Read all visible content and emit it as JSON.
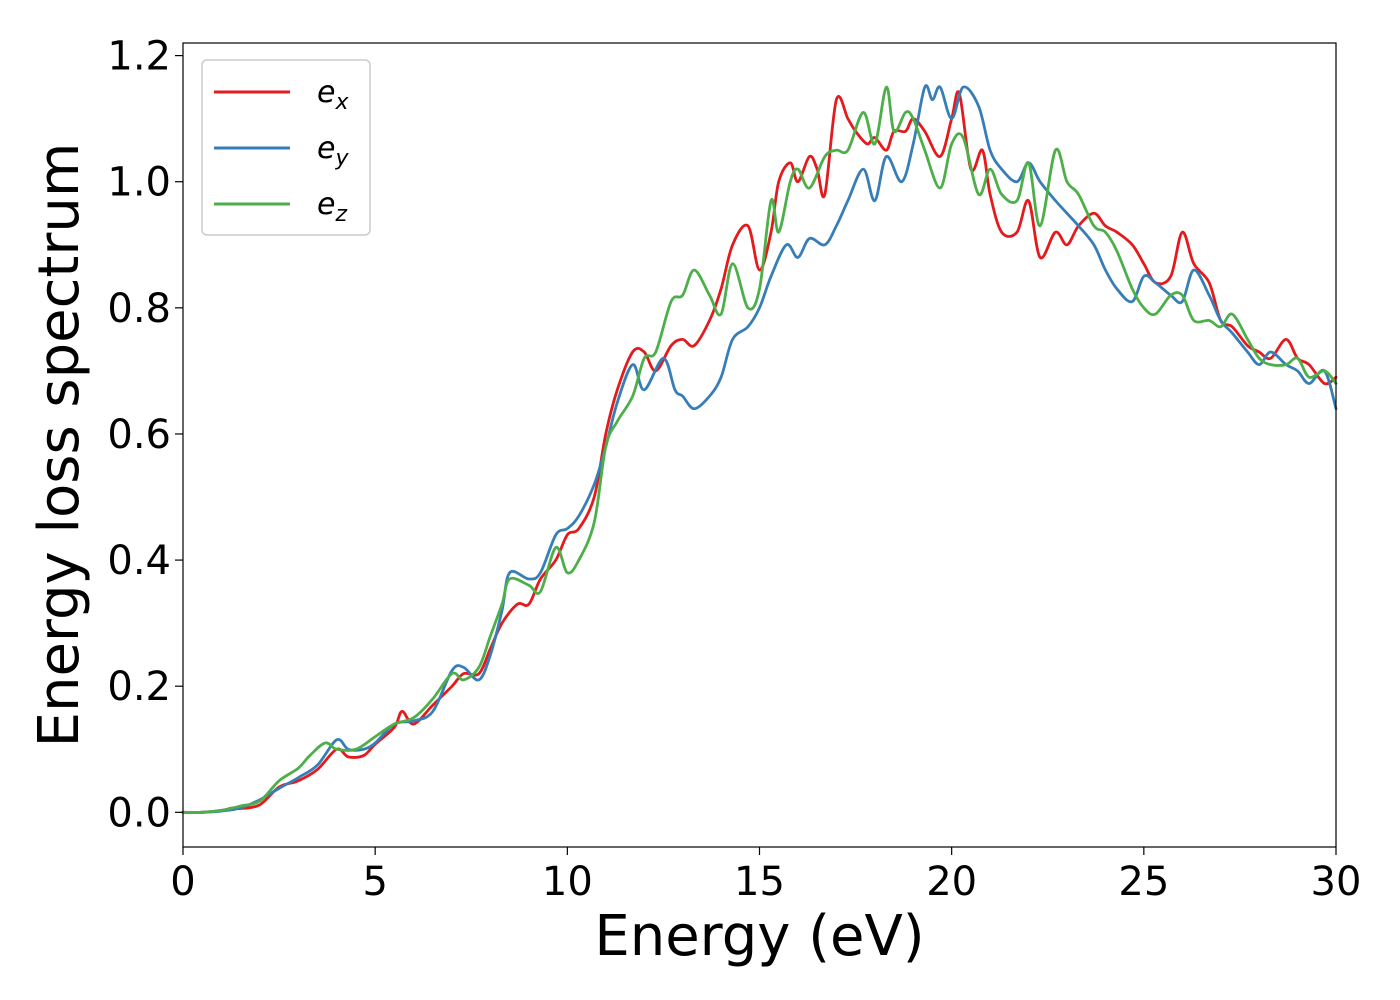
{
  "chart_data": {
    "type": "line",
    "title": "",
    "xlabel": "Energy (eV)",
    "ylabel": "Energy loss spectrum",
    "xlim": [
      0,
      30
    ],
    "ylim": [
      -0.055,
      1.22
    ],
    "xticks": [
      0,
      5,
      10,
      15,
      20,
      25,
      30
    ],
    "xtick_labels": [
      "0",
      "5",
      "10",
      "15",
      "20",
      "25",
      "30"
    ],
    "yticks": [
      0.0,
      0.2,
      0.4,
      0.6,
      0.8,
      1.0,
      1.2
    ],
    "ytick_labels": [
      "0.0",
      "0.2",
      "0.4",
      "0.6",
      "0.8",
      "1.0",
      "1.2"
    ],
    "grid": false,
    "legend_position": "top-left",
    "series": [
      {
        "name": "e",
        "subscript": "x",
        "color": "#e41a1c",
        "points": [
          [
            0,
            0
          ],
          [
            0.5,
            0.0
          ],
          [
            1,
            0.003
          ],
          [
            1.3,
            0.007
          ],
          [
            1.5,
            0.006
          ],
          [
            2,
            0.012
          ],
          [
            2.5,
            0.04
          ],
          [
            3,
            0.05
          ],
          [
            3.5,
            0.068
          ],
          [
            4,
            0.1
          ],
          [
            4.3,
            0.088
          ],
          [
            4.7,
            0.09
          ],
          [
            5,
            0.108
          ],
          [
            5.5,
            0.135
          ],
          [
            5.7,
            0.16
          ],
          [
            6,
            0.14
          ],
          [
            6.5,
            0.17
          ],
          [
            7,
            0.2
          ],
          [
            7.3,
            0.22
          ],
          [
            7.7,
            0.22
          ],
          [
            8,
            0.26
          ],
          [
            8.3,
            0.3
          ],
          [
            8.7,
            0.33
          ],
          [
            9,
            0.33
          ],
          [
            9.3,
            0.37
          ],
          [
            9.7,
            0.4
          ],
          [
            10,
            0.44
          ],
          [
            10.3,
            0.45
          ],
          [
            10.7,
            0.5
          ],
          [
            11,
            0.6
          ],
          [
            11.3,
            0.67
          ],
          [
            11.7,
            0.73
          ],
          [
            12,
            0.73
          ],
          [
            12.3,
            0.7
          ],
          [
            12.7,
            0.74
          ],
          [
            13,
            0.75
          ],
          [
            13.3,
            0.74
          ],
          [
            13.7,
            0.78
          ],
          [
            14,
            0.83
          ],
          [
            14.3,
            0.9
          ],
          [
            14.7,
            0.93
          ],
          [
            15,
            0.86
          ],
          [
            15.3,
            0.92
          ],
          [
            15.5,
            1.0
          ],
          [
            15.8,
            1.03
          ],
          [
            16,
            1.0
          ],
          [
            16.3,
            1.04
          ],
          [
            16.5,
            1.02
          ],
          [
            16.7,
            0.98
          ],
          [
            17,
            1.13
          ],
          [
            17.3,
            1.1
          ],
          [
            17.5,
            1.08
          ],
          [
            17.8,
            1.06
          ],
          [
            18,
            1.07
          ],
          [
            18.3,
            1.05
          ],
          [
            18.5,
            1.08
          ],
          [
            18.8,
            1.08
          ],
          [
            19,
            1.1
          ],
          [
            19.3,
            1.08
          ],
          [
            19.7,
            1.04
          ],
          [
            20,
            1.1
          ],
          [
            20.2,
            1.14
          ],
          [
            20.5,
            1.02
          ],
          [
            20.8,
            1.05
          ],
          [
            21,
            0.98
          ],
          [
            21.3,
            0.92
          ],
          [
            21.7,
            0.92
          ],
          [
            22,
            0.97
          ],
          [
            22.3,
            0.88
          ],
          [
            22.7,
            0.92
          ],
          [
            23,
            0.9
          ],
          [
            23.3,
            0.93
          ],
          [
            23.7,
            0.95
          ],
          [
            24,
            0.93
          ],
          [
            24.3,
            0.92
          ],
          [
            24.7,
            0.9
          ],
          [
            25,
            0.87
          ],
          [
            25.3,
            0.84
          ],
          [
            25.7,
            0.85
          ],
          [
            26,
            0.92
          ],
          [
            26.3,
            0.87
          ],
          [
            26.7,
            0.84
          ],
          [
            27,
            0.78
          ],
          [
            27.3,
            0.77
          ],
          [
            27.7,
            0.74
          ],
          [
            28,
            0.73
          ],
          [
            28.3,
            0.72
          ],
          [
            28.7,
            0.75
          ],
          [
            29,
            0.72
          ],
          [
            29.3,
            0.71
          ],
          [
            29.7,
            0.68
          ],
          [
            30,
            0.69
          ]
        ]
      },
      {
        "name": "e",
        "subscript": "y",
        "color": "#377eb8",
        "points": [
          [
            0,
            0
          ],
          [
            0.5,
            0.0
          ],
          [
            1,
            0.002
          ],
          [
            1.5,
            0.007
          ],
          [
            2,
            0.02
          ],
          [
            2.5,
            0.038
          ],
          [
            3,
            0.055
          ],
          [
            3.5,
            0.075
          ],
          [
            4,
            0.115
          ],
          [
            4.3,
            0.1
          ],
          [
            4.7,
            0.1
          ],
          [
            5,
            0.11
          ],
          [
            5.5,
            0.14
          ],
          [
            6,
            0.145
          ],
          [
            6.5,
            0.16
          ],
          [
            7,
            0.225
          ],
          [
            7.3,
            0.23
          ],
          [
            7.7,
            0.21
          ],
          [
            8,
            0.25
          ],
          [
            8.3,
            0.32
          ],
          [
            8.5,
            0.38
          ],
          [
            9,
            0.37
          ],
          [
            9.3,
            0.38
          ],
          [
            9.7,
            0.44
          ],
          [
            10,
            0.45
          ],
          [
            10.3,
            0.47
          ],
          [
            10.7,
            0.52
          ],
          [
            11,
            0.58
          ],
          [
            11.3,
            0.65
          ],
          [
            11.7,
            0.71
          ],
          [
            12,
            0.67
          ],
          [
            12.5,
            0.72
          ],
          [
            12.8,
            0.67
          ],
          [
            13,
            0.66
          ],
          [
            13.3,
            0.64
          ],
          [
            13.7,
            0.66
          ],
          [
            14,
            0.69
          ],
          [
            14.3,
            0.75
          ],
          [
            14.7,
            0.77
          ],
          [
            15,
            0.8
          ],
          [
            15.3,
            0.85
          ],
          [
            15.7,
            0.9
          ],
          [
            16,
            0.88
          ],
          [
            16.3,
            0.91
          ],
          [
            16.7,
            0.9
          ],
          [
            17,
            0.93
          ],
          [
            17.3,
            0.97
          ],
          [
            17.7,
            1.02
          ],
          [
            18,
            0.97
          ],
          [
            18.3,
            1.04
          ],
          [
            18.7,
            1.0
          ],
          [
            19,
            1.06
          ],
          [
            19.3,
            1.15
          ],
          [
            19.5,
            1.13
          ],
          [
            19.7,
            1.15
          ],
          [
            20,
            1.1
          ],
          [
            20.3,
            1.15
          ],
          [
            20.7,
            1.12
          ],
          [
            21,
            1.05
          ],
          [
            21.3,
            1.02
          ],
          [
            21.7,
            1.0
          ],
          [
            22,
            1.03
          ],
          [
            22.3,
            1.0
          ],
          [
            22.7,
            0.97
          ],
          [
            23,
            0.95
          ],
          [
            23.3,
            0.93
          ],
          [
            23.7,
            0.9
          ],
          [
            24,
            0.86
          ],
          [
            24.3,
            0.83
          ],
          [
            24.7,
            0.81
          ],
          [
            25,
            0.85
          ],
          [
            25.3,
            0.84
          ],
          [
            25.7,
            0.82
          ],
          [
            26,
            0.81
          ],
          [
            26.3,
            0.86
          ],
          [
            26.7,
            0.82
          ],
          [
            27,
            0.78
          ],
          [
            27.3,
            0.76
          ],
          [
            27.7,
            0.73
          ],
          [
            28,
            0.71
          ],
          [
            28.3,
            0.73
          ],
          [
            28.7,
            0.71
          ],
          [
            29,
            0.7
          ],
          [
            29.3,
            0.68
          ],
          [
            29.7,
            0.7
          ],
          [
            30,
            0.64
          ]
        ]
      },
      {
        "name": "e",
        "subscript": "z",
        "color": "#4daf4a",
        "points": [
          [
            0,
            0
          ],
          [
            0.5,
            0.0
          ],
          [
            1,
            0.003
          ],
          [
            1.5,
            0.01
          ],
          [
            2,
            0.018
          ],
          [
            2.5,
            0.05
          ],
          [
            3,
            0.07
          ],
          [
            3.3,
            0.09
          ],
          [
            3.7,
            0.11
          ],
          [
            4,
            0.1
          ],
          [
            4.5,
            0.1
          ],
          [
            5,
            0.12
          ],
          [
            5.5,
            0.14
          ],
          [
            6,
            0.15
          ],
          [
            6.5,
            0.18
          ],
          [
            7,
            0.22
          ],
          [
            7.3,
            0.21
          ],
          [
            7.7,
            0.23
          ],
          [
            8,
            0.28
          ],
          [
            8.3,
            0.33
          ],
          [
            8.5,
            0.37
          ],
          [
            9,
            0.36
          ],
          [
            9.3,
            0.35
          ],
          [
            9.7,
            0.42
          ],
          [
            10,
            0.38
          ],
          [
            10.3,
            0.4
          ],
          [
            10.7,
            0.46
          ],
          [
            11,
            0.58
          ],
          [
            11.3,
            0.62
          ],
          [
            11.7,
            0.66
          ],
          [
            12,
            0.72
          ],
          [
            12.3,
            0.73
          ],
          [
            12.7,
            0.81
          ],
          [
            13,
            0.82
          ],
          [
            13.3,
            0.86
          ],
          [
            13.7,
            0.82
          ],
          [
            14,
            0.79
          ],
          [
            14.3,
            0.87
          ],
          [
            14.7,
            0.8
          ],
          [
            15,
            0.83
          ],
          [
            15.3,
            0.97
          ],
          [
            15.5,
            0.92
          ],
          [
            15.8,
            1.0
          ],
          [
            16,
            1.02
          ],
          [
            16.3,
            0.99
          ],
          [
            16.7,
            1.04
          ],
          [
            17,
            1.05
          ],
          [
            17.3,
            1.05
          ],
          [
            17.7,
            1.11
          ],
          [
            18,
            1.06
          ],
          [
            18.3,
            1.15
          ],
          [
            18.5,
            1.08
          ],
          [
            18.8,
            1.11
          ],
          [
            19,
            1.1
          ],
          [
            19.3,
            1.05
          ],
          [
            19.7,
            0.99
          ],
          [
            20,
            1.06
          ],
          [
            20.3,
            1.07
          ],
          [
            20.7,
            0.98
          ],
          [
            21,
            1.02
          ],
          [
            21.3,
            0.98
          ],
          [
            21.7,
            0.97
          ],
          [
            22,
            1.03
          ],
          [
            22.3,
            0.93
          ],
          [
            22.7,
            1.05
          ],
          [
            23,
            1.0
          ],
          [
            23.3,
            0.98
          ],
          [
            23.7,
            0.93
          ],
          [
            24,
            0.92
          ],
          [
            24.3,
            0.89
          ],
          [
            24.7,
            0.83
          ],
          [
            25,
            0.8
          ],
          [
            25.3,
            0.79
          ],
          [
            25.7,
            0.82
          ],
          [
            26,
            0.82
          ],
          [
            26.3,
            0.78
          ],
          [
            26.7,
            0.78
          ],
          [
            27,
            0.77
          ],
          [
            27.3,
            0.79
          ],
          [
            27.7,
            0.75
          ],
          [
            28,
            0.72
          ],
          [
            28.3,
            0.71
          ],
          [
            28.7,
            0.71
          ],
          [
            29,
            0.72
          ],
          [
            29.3,
            0.69
          ],
          [
            29.7,
            0.7
          ],
          [
            30,
            0.68
          ]
        ]
      }
    ]
  }
}
